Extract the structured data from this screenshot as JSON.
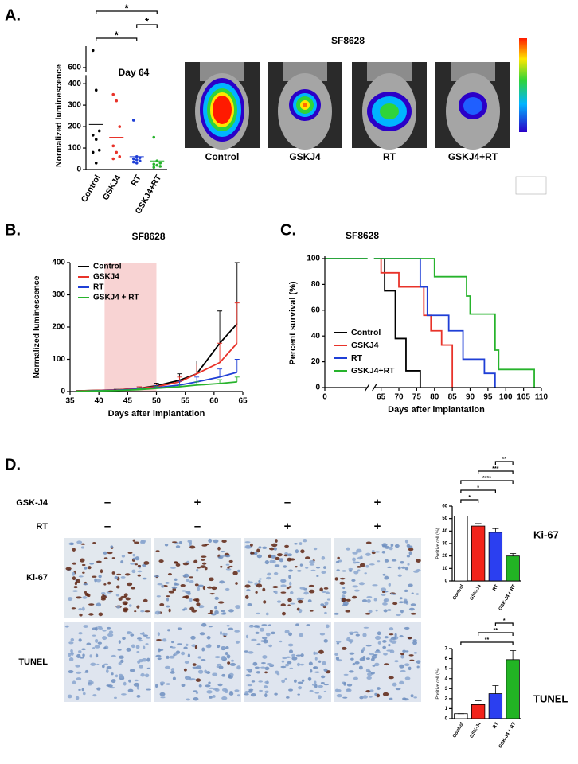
{
  "panel_labels": {
    "a": "A.",
    "b": "B.",
    "c": "C.",
    "d": "D."
  },
  "imaging": {
    "title": "SF8628",
    "labels": [
      "Control",
      "GSKJ4",
      "RT",
      "GSKJ4+RT"
    ]
  },
  "histology": {
    "treatments": [
      {
        "name": "GSK-J4",
        "signs": [
          "–",
          "+",
          "–",
          "+"
        ]
      },
      {
        "name": "RT",
        "signs": [
          "–",
          "–",
          "+",
          "+"
        ]
      }
    ],
    "stains": [
      "Ki-67",
      "TUNEL"
    ]
  },
  "chart_data": [
    {
      "type": "dot",
      "title": "Day 64",
      "y_label": "Normalized luminescence",
      "categories": [
        "Control",
        "GSKJ4",
        "RT",
        "GSKJ4+RT"
      ],
      "colors": [
        "#000000",
        "#e8332a",
        "#1f3fd6",
        "#27b32c"
      ],
      "points": [
        [
          680,
          370,
          180,
          160,
          140,
          90,
          80,
          30
        ],
        [
          350,
          320,
          200,
          110,
          80,
          60,
          50
        ],
        [
          230,
          60,
          55,
          50,
          45,
          40,
          35,
          30
        ],
        [
          150,
          40,
          30,
          25,
          20,
          15,
          10
        ]
      ],
      "means": [
        210,
        150,
        60,
        40
      ],
      "ylim": [
        0,
        700
      ],
      "ybreak": [
        440,
        580
      ],
      "yticks": [
        0,
        100,
        200,
        300,
        400,
        600
      ],
      "significance": [
        {
          "between": [
            "Control",
            "GSKJ4+RT"
          ],
          "label": "*"
        },
        {
          "between": [
            "RT",
            "GSKJ4+RT"
          ],
          "label": "*"
        },
        {
          "between": [
            "Control",
            "RT"
          ],
          "label": "*"
        }
      ]
    },
    {
      "type": "line",
      "title": "SF8628",
      "x_label": "Days after implantation",
      "y_label": "Normalized luminescence",
      "x": [
        36,
        43,
        47,
        50,
        54,
        57,
        61,
        64
      ],
      "shade": [
        41,
        50
      ],
      "series": [
        {
          "name": "Control",
          "color": "#000000",
          "values": [
            2,
            5,
            10,
            18,
            35,
            55,
            150,
            210
          ],
          "errors": [
            null,
            2,
            5,
            8,
            20,
            40,
            100,
            190
          ]
        },
        {
          "name": "GSKJ4",
          "color": "#e8332a",
          "values": [
            2,
            5,
            10,
            15,
            30,
            55,
            90,
            150
          ],
          "errors": [
            null,
            null,
            5,
            8,
            15,
            30,
            60,
            125
          ]
        },
        {
          "name": "RT",
          "color": "#1f3fd6",
          "values": [
            1,
            4,
            8,
            12,
            20,
            30,
            45,
            60
          ],
          "errors": [
            null,
            null,
            4,
            6,
            12,
            15,
            25,
            40
          ]
        },
        {
          "name": "GSKJ4 + RT",
          "color": "#27b32c",
          "values": [
            1,
            3,
            6,
            10,
            15,
            20,
            25,
            30
          ],
          "errors": [
            null,
            null,
            3,
            5,
            8,
            10,
            12,
            15
          ]
        }
      ],
      "xlim": [
        35,
        65
      ],
      "xticks": [
        35,
        40,
        45,
        50,
        55,
        60,
        65
      ],
      "ylim": [
        0,
        400
      ],
      "yticks": [
        0,
        100,
        200,
        300,
        400
      ]
    },
    {
      "type": "step",
      "title": "SF8628",
      "x_label": "Days after implantation",
      "y_label": "Percent survival (%)",
      "series": [
        {
          "name": "Control",
          "color": "#000000",
          "x": [
            0,
            66,
            69,
            72,
            76
          ],
          "values": [
            100,
            75,
            38,
            13,
            0
          ]
        },
        {
          "name": "GSKJ4",
          "color": "#e8332a",
          "x": [
            0,
            65,
            70,
            77,
            79,
            82,
            85
          ],
          "values": [
            100,
            89,
            78,
            56,
            44,
            33,
            0
          ]
        },
        {
          "name": "RT",
          "color": "#1f3fd6",
          "x": [
            0,
            76,
            78,
            84,
            88,
            94,
            97
          ],
          "values": [
            100,
            78,
            56,
            44,
            22,
            11,
            0
          ]
        },
        {
          "name": "GSKJ4+RT",
          "color": "#27b32c",
          "x": [
            0,
            80,
            89,
            90,
            97,
            98,
            108
          ],
          "values": [
            100,
            86,
            71,
            57,
            29,
            14,
            0
          ]
        }
      ],
      "xlim": [
        0,
        110
      ],
      "xbreak": [
        12,
        63
      ],
      "xticks": [
        0,
        65,
        70,
        75,
        80,
        85,
        90,
        95,
        100,
        105,
        110
      ],
      "ylim": [
        0,
        100
      ],
      "yticks": [
        0,
        20,
        40,
        60,
        80,
        100
      ]
    },
    {
      "type": "bar",
      "title": "Ki-67",
      "y_label": "Positive cell (%)",
      "categories": [
        "Control",
        "GSK-J4",
        "RT",
        "GSK-J4 + RT"
      ],
      "colors": [
        "#ffffff",
        "#f2231b",
        "#2b3ff0",
        "#22b424"
      ],
      "values": [
        52,
        44,
        39,
        20
      ],
      "errors": [
        0,
        2,
        3,
        2
      ],
      "ylim": [
        0,
        60
      ],
      "yticks": [
        0,
        10,
        20,
        30,
        40,
        50,
        60
      ],
      "significance": [
        {
          "between": [
            "RT",
            "GSK-J4 + RT"
          ],
          "label": "**"
        },
        {
          "between": [
            "GSK-J4",
            "GSK-J4 + RT"
          ],
          "label": "***"
        },
        {
          "between": [
            "Control",
            "GSK-J4 + RT"
          ],
          "label": "****"
        },
        {
          "between": [
            "Control",
            "RT"
          ],
          "label": "*"
        },
        {
          "between": [
            "Control",
            "GSK-J4"
          ],
          "label": "*"
        }
      ]
    },
    {
      "type": "bar",
      "title": "TUNEL",
      "y_label": "Positive cell (%)",
      "categories": [
        "Control",
        "GSK-J4",
        "RT",
        "GSK-J4 + RT"
      ],
      "colors": [
        "#ffffff",
        "#f2231b",
        "#2b3ff0",
        "#22b424"
      ],
      "values": [
        0.5,
        1.4,
        2.5,
        5.9
      ],
      "errors": [
        0,
        0.4,
        0.8,
        0.9
      ],
      "ylim": [
        0,
        7
      ],
      "yticks": [
        0,
        1,
        2,
        3,
        4,
        5,
        6,
        7
      ],
      "significance": [
        {
          "between": [
            "RT",
            "GSK-J4 + RT"
          ],
          "label": "*"
        },
        {
          "between": [
            "GSK-J4",
            "GSK-J4 + RT"
          ],
          "label": "**"
        },
        {
          "between": [
            "Control",
            "GSK-J4 + RT"
          ],
          "label": "**"
        }
      ]
    }
  ]
}
